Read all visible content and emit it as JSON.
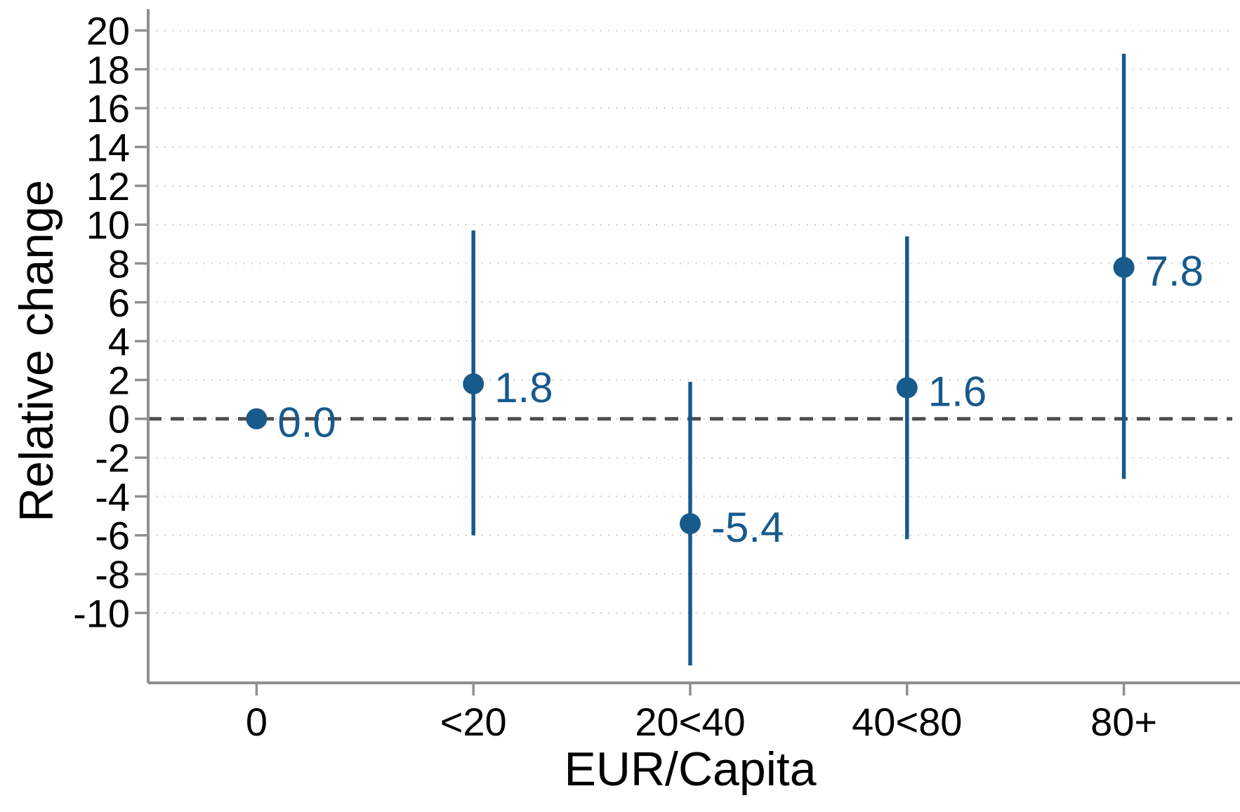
{
  "chart_data": {
    "type": "scatter",
    "subtype": "point-estimates-with-confidence-intervals",
    "title": "",
    "xlabel": "EUR/Capita",
    "ylabel": "Relative change",
    "categories": [
      "0",
      "<20",
      "20<40",
      "40<80",
      "80+"
    ],
    "points": [
      {
        "category": "0",
        "estimate": 0.0,
        "label": "0.0",
        "ci_low": null,
        "ci_high": null
      },
      {
        "category": "<20",
        "estimate": 1.8,
        "label": "1.8",
        "ci_low": -6.0,
        "ci_high": 9.7
      },
      {
        "category": "20<40",
        "estimate": -5.4,
        "label": "-5.4",
        "ci_low": -12.7,
        "ci_high": 1.9
      },
      {
        "category": "40<80",
        "estimate": 1.6,
        "label": "1.6",
        "ci_low": -6.2,
        "ci_high": 9.4
      },
      {
        "category": "80+",
        "estimate": 7.8,
        "label": "7.8",
        "ci_low": -3.1,
        "ci_high": 18.8
      }
    ],
    "yticks": [
      20,
      18,
      16,
      14,
      12,
      10,
      8,
      6,
      4,
      2,
      0,
      -2,
      -4,
      -6,
      -8,
      -10
    ],
    "ylim": [
      -13.6,
      21.1
    ],
    "reference_line": 0,
    "grid": true,
    "legend": "none",
    "colors": {
      "point": "#175a8c",
      "value_label": "#175a8c",
      "axis": "#8f8f8f",
      "grid": "#c9c9c9",
      "zero_line": "#4d4d4d",
      "tick_text": "#000000"
    }
  }
}
